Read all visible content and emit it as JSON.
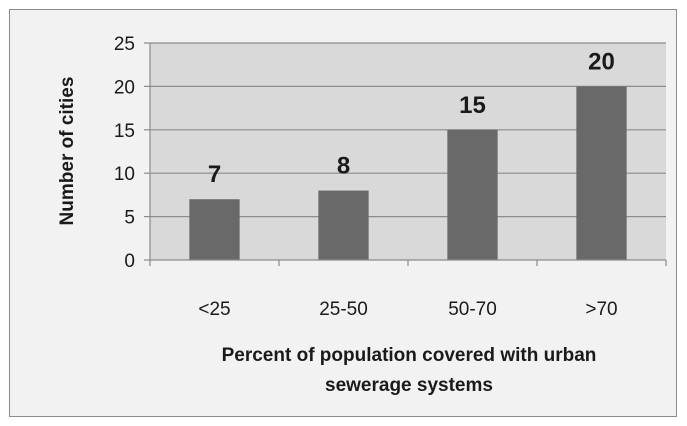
{
  "chart_data": {
    "type": "bar",
    "categories": [
      "<25",
      "25-50",
      "50-70",
      ">70"
    ],
    "values": [
      7,
      8,
      15,
      20
    ],
    "data_labels": [
      "7",
      "8",
      "15",
      "20"
    ],
    "title": "",
    "xlabel": [
      "Percent of population covered with urban",
      "sewerage systems"
    ],
    "ylabel": "Number of cities",
    "ylim": [
      0,
      25
    ],
    "yticks": [
      0,
      5,
      10,
      15,
      20,
      25
    ],
    "grid": true,
    "legend": "none",
    "colors": {
      "plot_background": "#d9d9d9",
      "chart_background": "#f2f2f2",
      "bar": "#696969",
      "gridline": "#8c8c8c"
    }
  }
}
